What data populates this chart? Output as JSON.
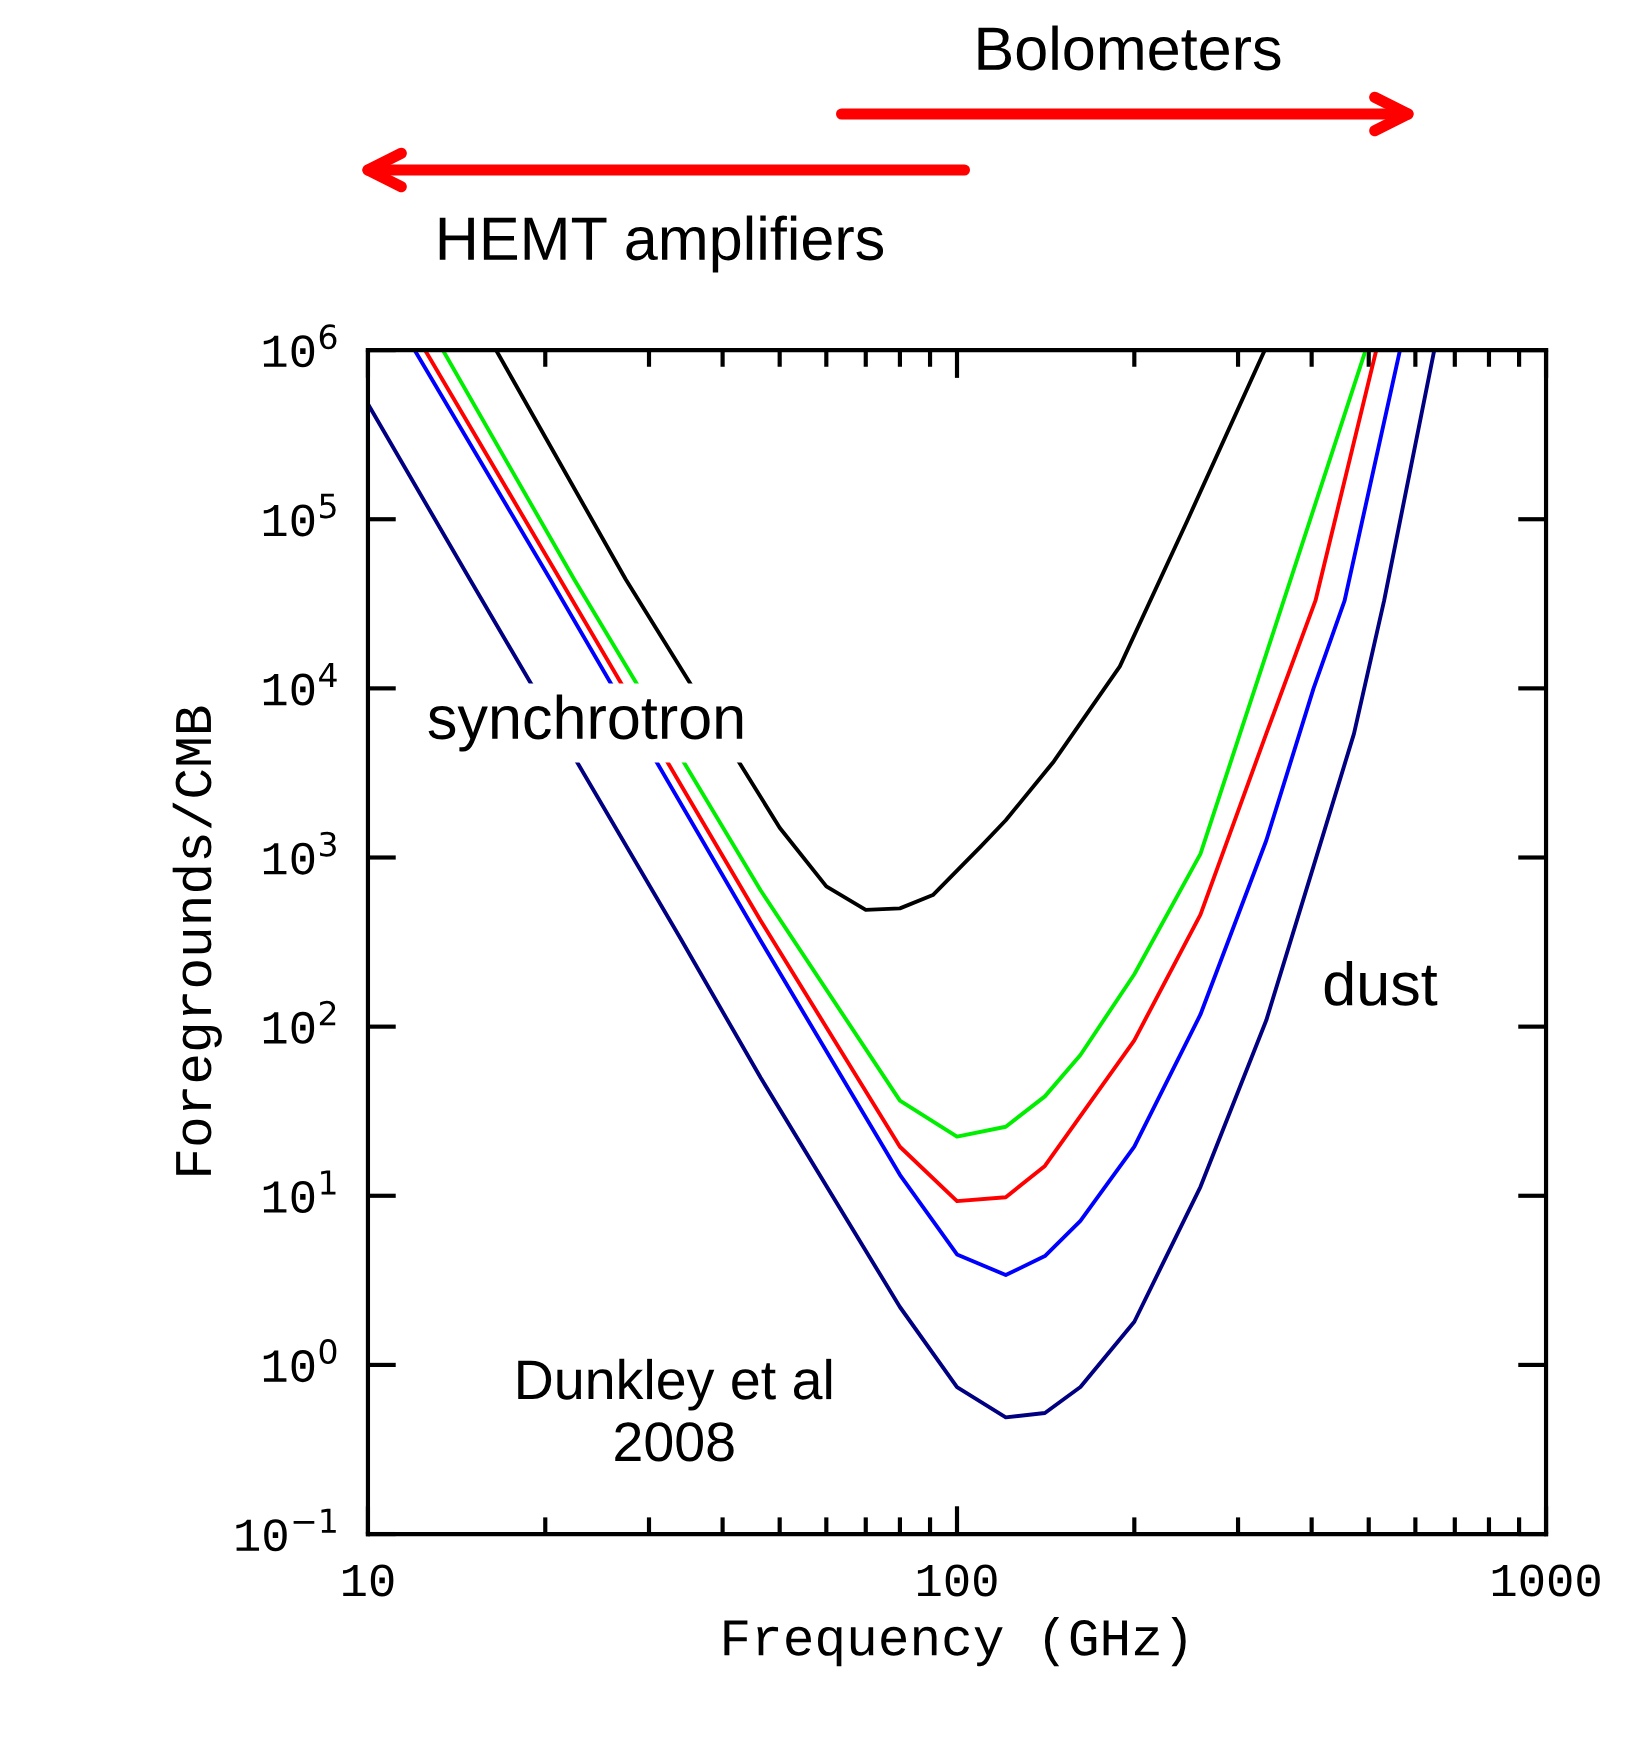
{
  "chart_data": {
    "type": "line",
    "xlabel": "Frequency (GHz)",
    "ylabel": "Foregrounds/CMB",
    "log": "xy",
    "xlim": [
      10,
      1000
    ],
    "ylim": [
      0.1,
      1000000
    ],
    "xticks": [
      10,
      100,
      1000
    ],
    "yticks": [
      {
        "value": 0.1,
        "label": "10$^{−1}$"
      },
      {
        "value": 1,
        "label": "10$^{0}$"
      },
      {
        "value": 10,
        "label": "10$^{1}$"
      },
      {
        "value": 100,
        "label": "10$^{2}$"
      },
      {
        "value": 1000,
        "label": "10$^{3}$"
      },
      {
        "value": 10000,
        "label": "10$^{4}$"
      },
      {
        "value": 100000,
        "label": "10$^{5}$"
      },
      {
        "value": 1000000,
        "label": "10$^{6}$"
      }
    ],
    "grid": false,
    "legend": false,
    "marker": "none",
    "line_style": "solid",
    "series": [
      {
        "color": "#000000",
        "x": [
          16.5,
          27.4,
          50,
          60,
          70,
          80,
          91,
          110,
          121,
          146,
          189,
          246,
          333
        ],
        "values": [
          1000000,
          44000,
          1500,
          675,
          490,
          500,
          600,
          1170,
          1660,
          3700,
          13500,
          98000,
          1000000
        ]
      },
      {
        "color": "#00ee00",
        "x": [
          13.4,
          22.4,
          46.4,
          80,
          100,
          121,
          141,
          162,
          200,
          259,
          335,
          494
        ],
        "values": [
          1000000,
          44000,
          640,
          36.5,
          22.4,
          25.6,
          38.7,
          68,
          204,
          1050,
          16000,
          1000000
        ]
      },
      {
        "color": "#ff0000",
        "x": [
          12.5,
          21.2,
          46.4,
          80,
          100,
          121,
          141,
          200,
          259,
          335,
          406,
          515
        ],
        "values": [
          1000000,
          44000,
          424,
          19.5,
          9.3,
          9.8,
          15,
          83,
          460,
          5400,
          33000,
          1000000
        ]
      },
      {
        "color": "#0000ff",
        "x": [
          12,
          20.4,
          46.4,
          80,
          100,
          121,
          141,
          162,
          200,
          259,
          335,
          403,
          455,
          565
        ],
        "values": [
          1000000,
          44000,
          323,
          13.3,
          4.5,
          3.4,
          4.4,
          7.1,
          19.5,
          118,
          1260,
          10000,
          33000,
          1000000
        ]
      },
      {
        "color": "#000080",
        "x": [
          10,
          14.9,
          33.8,
          46.4,
          80,
          100,
          121,
          141,
          162,
          200,
          259,
          335,
          403,
          472,
          531,
          646
        ],
        "values": [
          480000,
          44000,
          340,
          50,
          2.2,
          0.74,
          0.49,
          0.52,
          0.74,
          1.8,
          11.3,
          109,
          890,
          5400,
          33000,
          1000000
        ]
      }
    ],
    "annotations": [
      "synchrotron",
      "dust",
      "Dunkley et al\n2008",
      "Bolometers",
      "HEMT amplifiers"
    ]
  }
}
